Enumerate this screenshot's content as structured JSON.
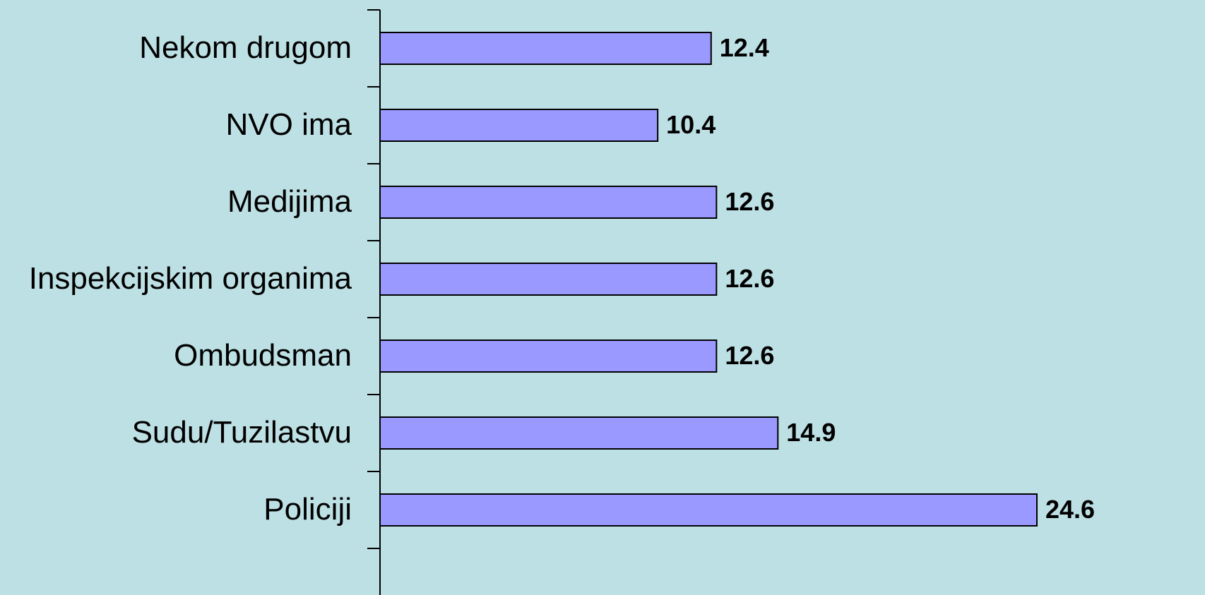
{
  "chart_data": {
    "type": "bar",
    "orientation": "horizontal",
    "categories": [
      "Nekom drugom",
      "NVO ima",
      "Medijima",
      "Inspekcijskim organima",
      "Ombudsman",
      "Sudu/Tuzilastvu",
      "Policiji"
    ],
    "values": [
      12.4,
      10.4,
      12.6,
      12.6,
      12.6,
      14.9,
      24.6
    ],
    "color": "#9999ff"
  }
}
